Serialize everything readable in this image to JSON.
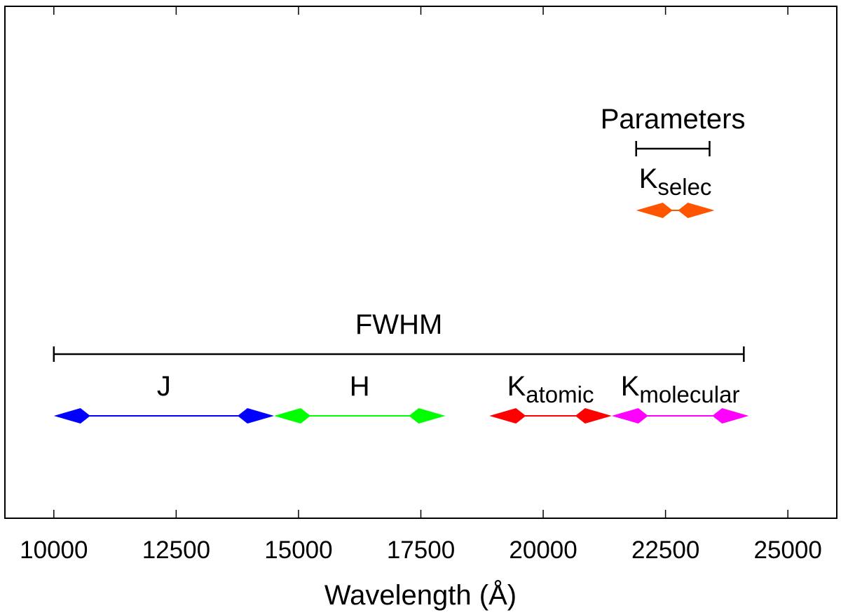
{
  "chart_data": {
    "type": "range",
    "title": "",
    "xlabel": "Wavelength (Å)",
    "ylabel": "",
    "xlim": [
      9000,
      26000
    ],
    "xticks": [
      10000,
      12500,
      15000,
      17500,
      20000,
      22500,
      25000
    ],
    "grid": false,
    "legend": "none",
    "brackets": [
      {
        "label": "FWHM",
        "start": 10000,
        "end": 24100,
        "level": "lower"
      },
      {
        "label": "Parameters",
        "start": 21900,
        "end": 23400,
        "level": "upper"
      }
    ],
    "bands": [
      {
        "name": "J",
        "subscript": "",
        "start": 10000,
        "end": 14500,
        "color": "#0000ff",
        "row": "lower"
      },
      {
        "name": "H",
        "subscript": "",
        "start": 14500,
        "end": 18000,
        "color": "#00ff00",
        "row": "lower"
      },
      {
        "name": "K",
        "subscript": "atomic",
        "start": 18900,
        "end": 21400,
        "color": "#ff0000",
        "row": "lower"
      },
      {
        "name": "K",
        "subscript": "molecular",
        "start": 21400,
        "end": 24200,
        "color": "#ff00ff",
        "row": "lower"
      },
      {
        "name": "K",
        "subscript": "selec",
        "start": 21900,
        "end": 23500,
        "color": "#ff5500",
        "row": "upper"
      }
    ]
  }
}
